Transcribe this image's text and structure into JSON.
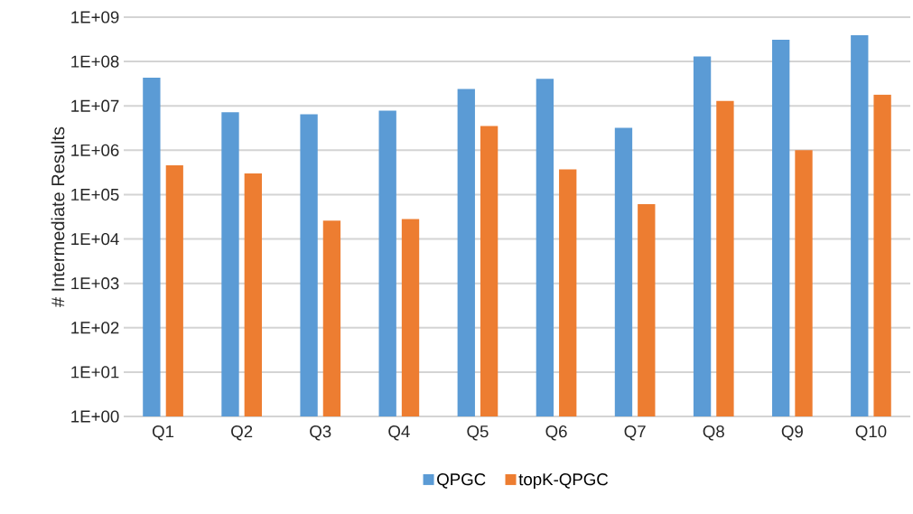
{
  "chart_data": {
    "type": "bar",
    "ylabel": "# Intermediate Results",
    "categories": [
      "Q1",
      "Q2",
      "Q3",
      "Q4",
      "Q5",
      "Q6",
      "Q7",
      "Q8",
      "Q9",
      "Q10"
    ],
    "series": [
      {
        "name": "QPGC",
        "color": "#5b9bd5",
        "values": [
          43000000,
          7200000,
          6500000,
          7800000,
          24000000,
          41000000,
          3200000,
          130000000,
          310000000,
          390000000
        ]
      },
      {
        "name": "topK-QPGC",
        "color": "#ed7d31",
        "values": [
          460000,
          300000,
          26000,
          28000,
          3500000,
          370000,
          61000,
          13000000,
          1000000,
          18000000
        ]
      }
    ],
    "log": true,
    "ylim": [
      1,
      1000000000
    ],
    "yticks": [
      {
        "value": 1,
        "label": "1E+00"
      },
      {
        "value": 10,
        "label": "1E+01"
      },
      {
        "value": 100,
        "label": "1E+02"
      },
      {
        "value": 1000,
        "label": "1E+03"
      },
      {
        "value": 10000,
        "label": "1E+04"
      },
      {
        "value": 100000,
        "label": "1E+05"
      },
      {
        "value": 1000000,
        "label": "1E+06"
      },
      {
        "value": 10000000,
        "label": "1E+07"
      },
      {
        "value": 100000000,
        "label": "1E+08"
      },
      {
        "value": 1000000000,
        "label": "1E+09"
      }
    ],
    "grid": "y",
    "legend": "bottom"
  }
}
